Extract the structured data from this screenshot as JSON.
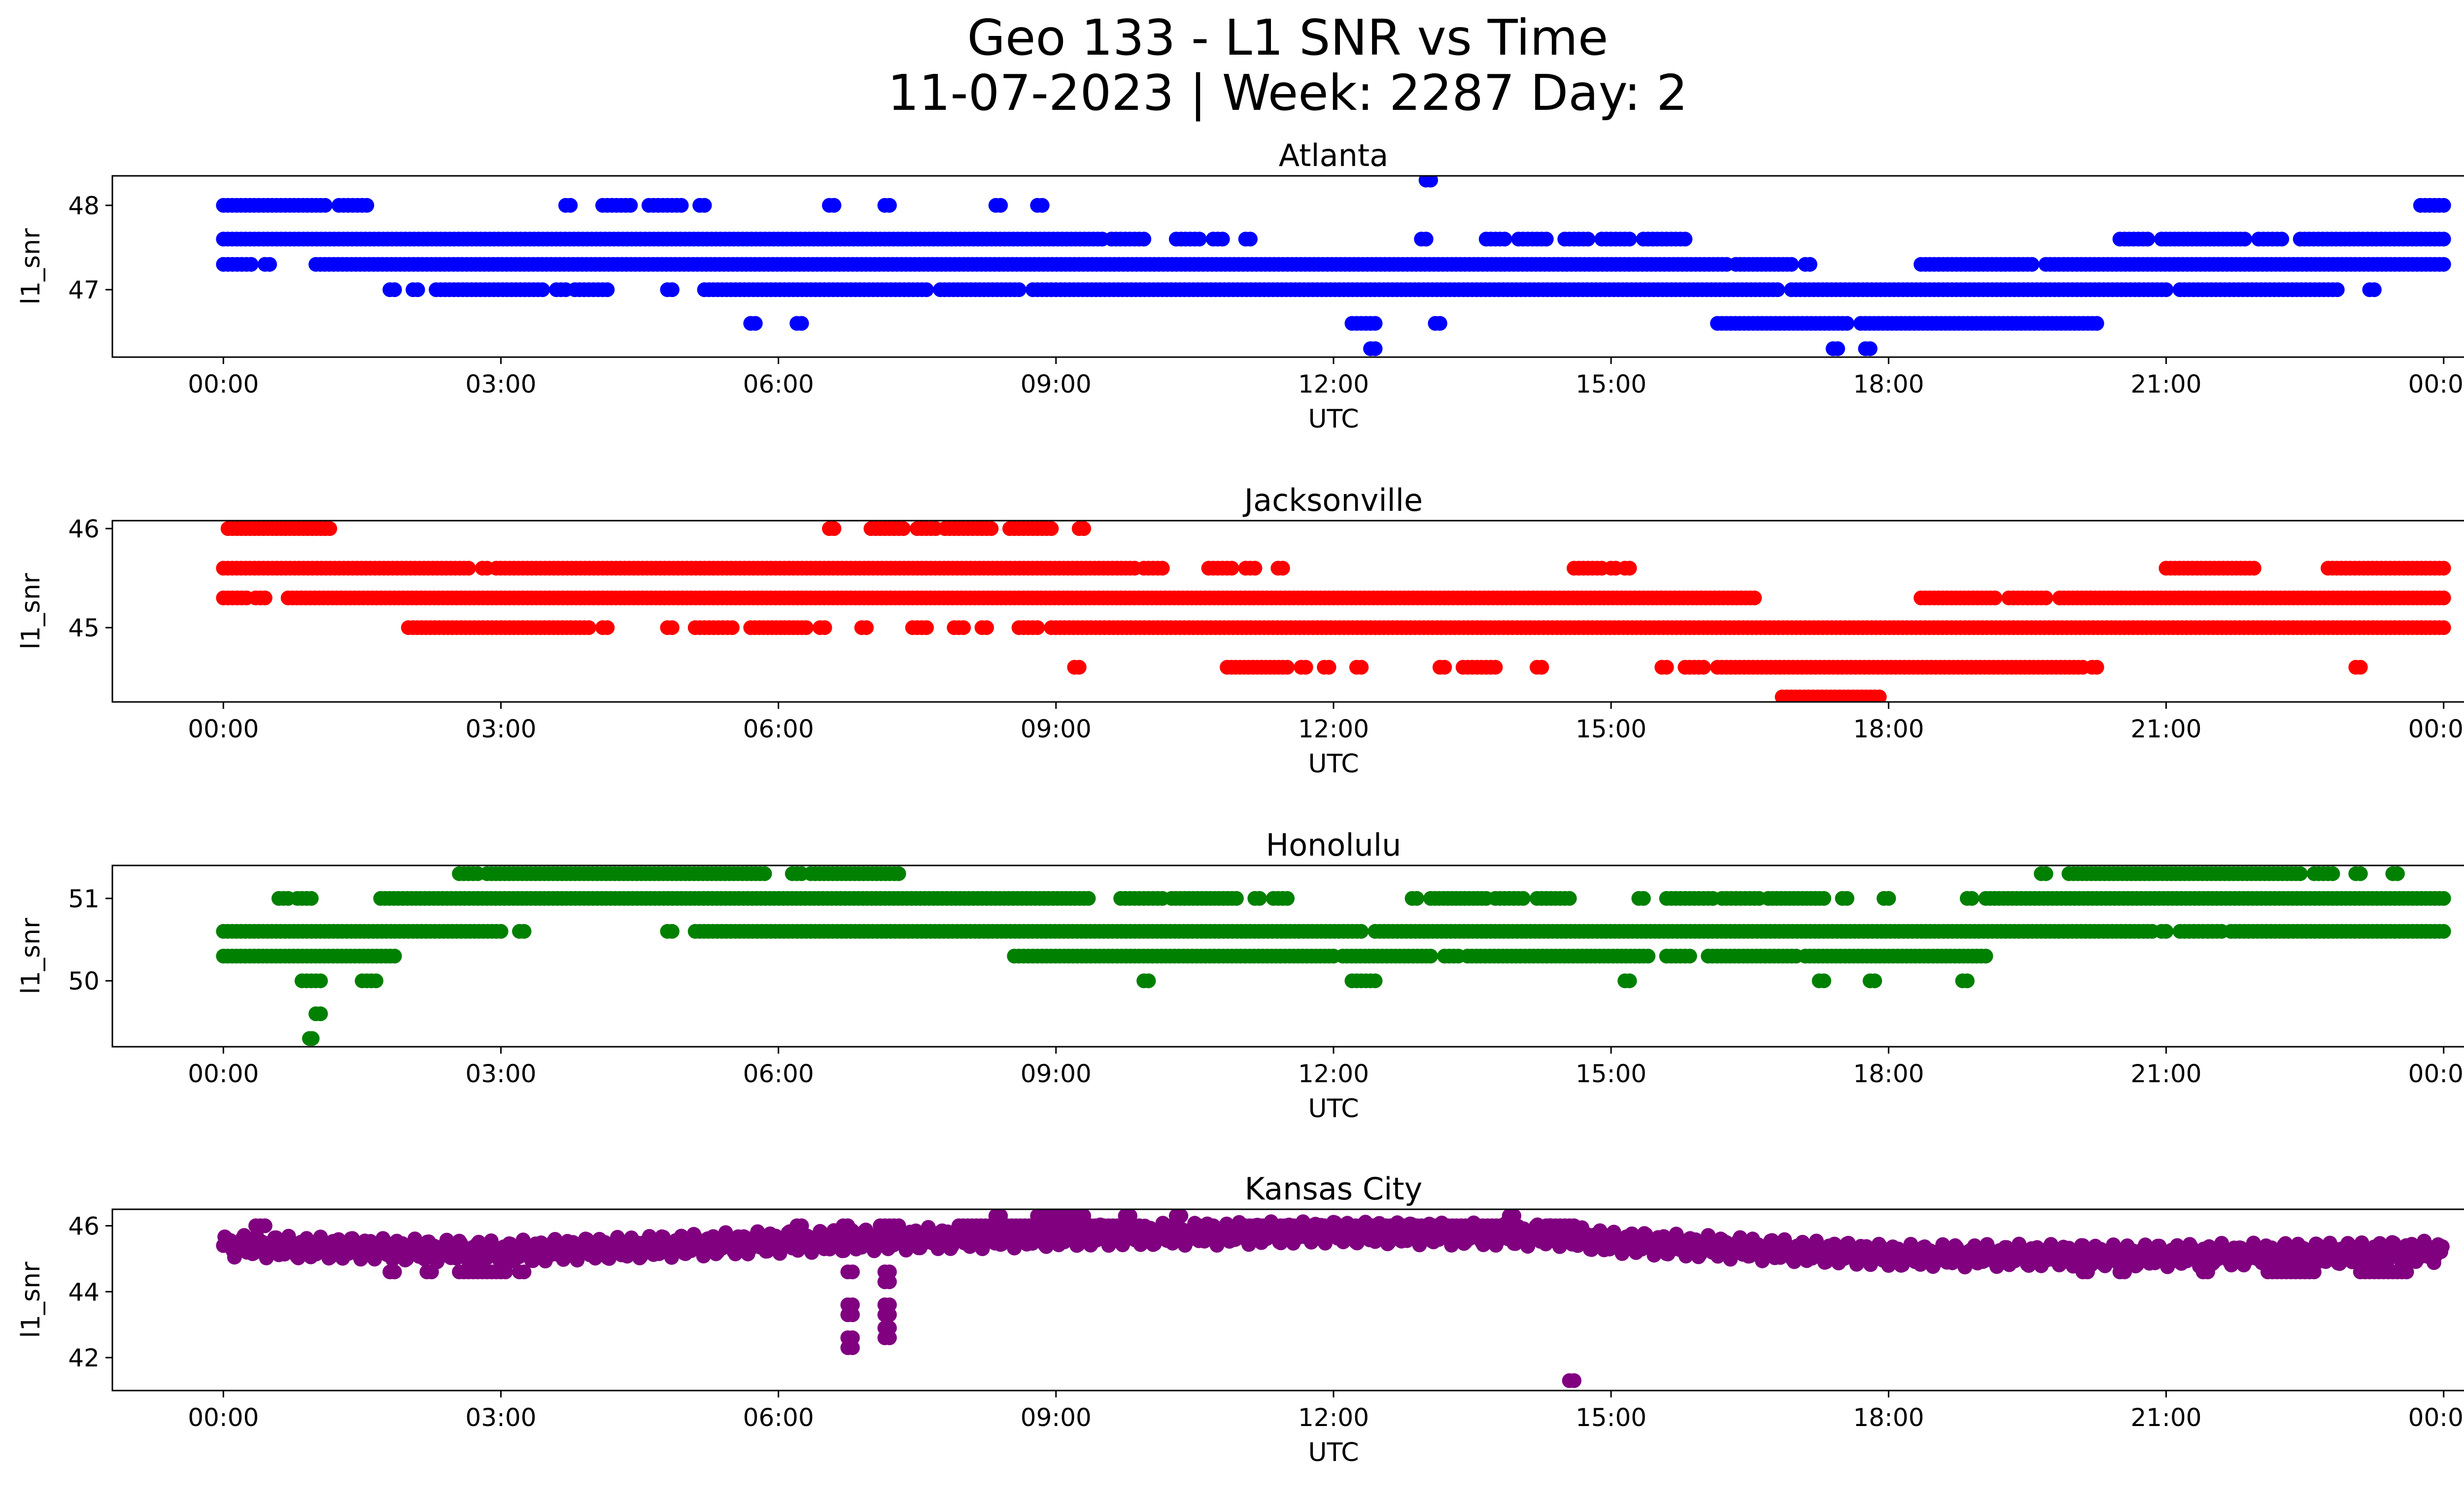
{
  "figure": {
    "title_line1": "Geo 133 - L1 SNR vs Time",
    "title_line2": "11-07-2023 | Week: 2287 Day: 2"
  },
  "chart_data": [
    {
      "type": "scatter",
      "title": "Atlanta",
      "xlabel": "UTC",
      "ylabel": "l1_snr",
      "color": "#0000ff",
      "xlim": [
        "00:00",
        "24:00"
      ],
      "ylim": [
        46.2,
        48.35
      ],
      "xticks": [
        "00:00",
        "03:00",
        "06:00",
        "09:00",
        "12:00",
        "15:00",
        "18:00",
        "21:00",
        "00:00"
      ],
      "yticks": [
        47,
        48
      ],
      "grid": false,
      "series": [
        {
          "y": 48.0,
          "ranges": [
            [
              0.0,
              1.1
            ],
            [
              1.25,
              1.55
            ],
            [
              3.7,
              3.75
            ],
            [
              4.1,
              4.4
            ],
            [
              4.6,
              4.95
            ],
            [
              5.15,
              5.2
            ],
            [
              6.55,
              6.6
            ],
            [
              7.15,
              7.2
            ],
            [
              8.35,
              8.4
            ],
            [
              8.8,
              8.85
            ],
            [
              23.75,
              24.0
            ]
          ]
        },
        {
          "y": 47.6,
          "ranges": [
            [
              0.0,
              9.5
            ],
            [
              9.6,
              9.95
            ],
            [
              10.3,
              10.55
            ],
            [
              10.7,
              10.8
            ],
            [
              11.05,
              11.1
            ],
            [
              12.95,
              13.0
            ],
            [
              13.65,
              13.85
            ],
            [
              14.0,
              14.3
            ],
            [
              14.5,
              14.75
            ],
            [
              14.9,
              15.2
            ],
            [
              15.35,
              15.8
            ],
            [
              20.5,
              20.8
            ],
            [
              20.95,
              21.85
            ],
            [
              22.0,
              22.25
            ],
            [
              22.45,
              24.0
            ]
          ]
        },
        {
          "y": 47.3,
          "ranges": [
            [
              0.0,
              0.3
            ],
            [
              0.45,
              0.5
            ],
            [
              1.0,
              16.25
            ],
            [
              16.35,
              16.95
            ],
            [
              17.1,
              17.15
            ],
            [
              18.35,
              19.55
            ],
            [
              19.7,
              24.0
            ]
          ]
        },
        {
          "y": 47.0,
          "ranges": [
            [
              1.8,
              1.85
            ],
            [
              2.05,
              2.1
            ],
            [
              2.3,
              3.45
            ],
            [
              3.6,
              3.7
            ],
            [
              3.8,
              4.15
            ],
            [
              4.8,
              4.85
            ],
            [
              5.2,
              7.6
            ],
            [
              7.75,
              8.6
            ],
            [
              8.75,
              9.0
            ],
            [
              9.05,
              16.8
            ],
            [
              16.95,
              21.0
            ],
            [
              21.15,
              22.85
            ],
            [
              23.2,
              23.25
            ]
          ]
        },
        {
          "y": 46.6,
          "ranges": [
            [
              5.7,
              5.75
            ],
            [
              6.2,
              6.25
            ],
            [
              12.2,
              12.45
            ],
            [
              13.1,
              13.15
            ],
            [
              16.15,
              17.55
            ],
            [
              17.7,
              20.25
            ]
          ]
        },
        {
          "y": 46.3,
          "ranges": [
            [
              12.4,
              12.45
            ],
            [
              17.4,
              17.45
            ],
            [
              17.75,
              17.8
            ]
          ]
        },
        {
          "y": 48.3,
          "ranges": [
            [
              13.0,
              13.05
            ]
          ]
        }
      ]
    },
    {
      "type": "scatter",
      "title": "Jacksonville",
      "xlabel": "UTC",
      "ylabel": "l1_snr",
      "color": "#ff0000",
      "xlim": [
        "00:00",
        "24:00"
      ],
      "ylim": [
        44.25,
        46.08
      ],
      "xticks": [
        "00:00",
        "03:00",
        "06:00",
        "09:00",
        "12:00",
        "15:00",
        "18:00",
        "21:00",
        "00:00"
      ],
      "yticks": [
        45,
        46
      ],
      "grid": false,
      "series": [
        {
          "y": 46.0,
          "ranges": [
            [
              0.05,
              1.15
            ],
            [
              6.55,
              6.6
            ],
            [
              7.0,
              7.35
            ],
            [
              7.5,
              7.7
            ],
            [
              7.8,
              8.3
            ],
            [
              8.5,
              8.95
            ],
            [
              9.25,
              9.3
            ]
          ]
        },
        {
          "y": 45.6,
          "ranges": [
            [
              0.0,
              2.65
            ],
            [
              2.8,
              2.85
            ],
            [
              2.95,
              9.85
            ],
            [
              9.95,
              10.15
            ],
            [
              10.65,
              10.9
            ],
            [
              11.05,
              11.15
            ],
            [
              11.4,
              11.45
            ],
            [
              14.6,
              14.9
            ],
            [
              15.0,
              15.05
            ],
            [
              15.15,
              15.2
            ],
            [
              21.0,
              21.95
            ],
            [
              22.75,
              24.0
            ]
          ]
        },
        {
          "y": 45.3,
          "ranges": [
            [
              0.0,
              0.25
            ],
            [
              0.35,
              0.45
            ],
            [
              0.7,
              16.55
            ],
            [
              18.35,
              19.15
            ],
            [
              19.3,
              19.7
            ],
            [
              19.85,
              24.0
            ]
          ]
        },
        {
          "y": 45.0,
          "ranges": [
            [
              2.0,
              3.95
            ],
            [
              4.1,
              4.15
            ],
            [
              4.8,
              4.85
            ],
            [
              5.1,
              5.5
            ],
            [
              5.7,
              6.3
            ],
            [
              6.45,
              6.5
            ],
            [
              6.9,
              6.95
            ],
            [
              7.45,
              7.6
            ],
            [
              7.9,
              8.0
            ],
            [
              8.2,
              8.25
            ],
            [
              8.6,
              8.8
            ],
            [
              8.95,
              24.0
            ]
          ]
        },
        {
          "y": 44.6,
          "ranges": [
            [
              9.2,
              9.25
            ],
            [
              10.85,
              11.5
            ],
            [
              11.65,
              11.7
            ],
            [
              11.9,
              11.95
            ],
            [
              12.25,
              12.3
            ],
            [
              13.15,
              13.2
            ],
            [
              13.4,
              13.75
            ],
            [
              14.2,
              14.25
            ],
            [
              15.55,
              15.6
            ],
            [
              15.8,
              16.0
            ],
            [
              16.15,
              20.1
            ],
            [
              20.2,
              20.25
            ],
            [
              23.05,
              23.1
            ]
          ]
        },
        {
          "y": 44.3,
          "ranges": [
            [
              16.85,
              17.9
            ]
          ]
        }
      ]
    },
    {
      "type": "scatter",
      "title": "Honolulu",
      "xlabel": "UTC",
      "ylabel": "l1_snr",
      "color": "#008000",
      "xlim": [
        "00:00",
        "24:00"
      ],
      "ylim": [
        49.2,
        51.4
      ],
      "xticks": [
        "00:00",
        "03:00",
        "06:00",
        "09:00",
        "12:00",
        "15:00",
        "18:00",
        "21:00",
        "00:00"
      ],
      "yticks": [
        50,
        51
      ],
      "grid": false,
      "series": [
        {
          "y": 51.3,
          "ranges": [
            [
              2.55,
              2.75
            ],
            [
              2.85,
              5.85
            ],
            [
              6.15,
              6.25
            ],
            [
              6.35,
              7.3
            ],
            [
              19.65,
              19.7
            ],
            [
              19.95,
              22.45
            ],
            [
              22.6,
              22.8
            ],
            [
              23.05,
              23.1
            ],
            [
              23.45,
              23.5
            ]
          ]
        },
        {
          "y": 51.0,
          "ranges": [
            [
              0.6,
              0.7
            ],
            [
              0.8,
              0.95
            ],
            [
              1.7,
              9.35
            ],
            [
              9.7,
              10.15
            ],
            [
              10.25,
              10.95
            ],
            [
              11.15,
              11.2
            ],
            [
              11.35,
              11.5
            ],
            [
              12.85,
              12.9
            ],
            [
              13.05,
              13.65
            ],
            [
              13.75,
              14.05
            ],
            [
              14.2,
              14.55
            ],
            [
              15.3,
              15.35
            ],
            [
              15.6,
              16.1
            ],
            [
              16.2,
              16.6
            ],
            [
              16.7,
              17.3
            ],
            [
              17.5,
              17.55
            ],
            [
              17.95,
              18.0
            ],
            [
              18.85,
              18.9
            ],
            [
              19.05,
              24.0
            ]
          ]
        },
        {
          "y": 50.6,
          "ranges": [
            [
              0.0,
              3.0
            ],
            [
              3.2,
              3.25
            ],
            [
              4.8,
              4.85
            ],
            [
              5.1,
              12.3
            ],
            [
              12.45,
              20.85
            ],
            [
              20.95,
              21.0
            ],
            [
              21.15,
              21.6
            ],
            [
              21.7,
              24.0
            ]
          ]
        },
        {
          "y": 50.3,
          "ranges": [
            [
              0.0,
              1.85
            ],
            [
              8.55,
              8.8
            ],
            [
              8.85,
              12.0
            ],
            [
              12.1,
              13.05
            ],
            [
              13.2,
              13.35
            ],
            [
              13.45,
              15.4
            ],
            [
              15.6,
              15.85
            ],
            [
              16.05,
              17.0
            ],
            [
              17.1,
              19.05
            ]
          ]
        },
        {
          "y": 50.0,
          "ranges": [
            [
              0.85,
              1.05
            ],
            [
              1.5,
              1.65
            ],
            [
              9.95,
              10.0
            ],
            [
              12.2,
              12.45
            ],
            [
              15.15,
              15.2
            ],
            [
              17.25,
              17.3
            ],
            [
              17.8,
              17.85
            ],
            [
              18.8,
              18.85
            ]
          ]
        },
        {
          "y": 49.6,
          "ranges": [
            [
              1.0,
              1.05
            ]
          ]
        },
        {
          "y": 49.3,
          "ranges": [
            [
              0.93,
              0.96
            ]
          ]
        }
      ]
    },
    {
      "type": "scatter",
      "title": "Kansas City",
      "xlabel": "UTC",
      "ylabel": "l1_snr",
      "color": "#800080",
      "xlim": [
        "00:00",
        "24:00"
      ],
      "ylim": [
        41.0,
        46.5
      ],
      "xticks": [
        "00:00",
        "03:00",
        "06:00",
        "09:00",
        "12:00",
        "15:00",
        "18:00",
        "21:00",
        "00:00"
      ],
      "yticks": [
        42,
        44,
        46
      ],
      "grid": false,
      "band": {
        "center": [
          [
            0.0,
            45.4
          ],
          [
            3.0,
            45.2
          ],
          [
            6.0,
            45.5
          ],
          [
            9.0,
            45.7
          ],
          [
            12.0,
            45.8
          ],
          [
            14.5,
            45.7
          ],
          [
            15.0,
            45.5
          ],
          [
            16.5,
            45.3
          ],
          [
            18.0,
            45.1
          ],
          [
            21.0,
            45.1
          ],
          [
            24.0,
            45.2
          ]
        ],
        "half_width": 0.35
      },
      "series": [
        {
          "y": 46.0,
          "ranges": [
            [
              0.35,
              0.45
            ],
            [
              6.2,
              6.25
            ],
            [
              6.7,
              6.75
            ],
            [
              7.1,
              7.3
            ],
            [
              7.95,
              9.9
            ],
            [
              10.2,
              10.25
            ],
            [
              10.5,
              10.7
            ],
            [
              11.0,
              13.95
            ],
            [
              14.3,
              14.6
            ]
          ]
        },
        {
          "y": 46.3,
          "ranges": [
            [
              8.35,
              8.4
            ],
            [
              8.8,
              9.3
            ],
            [
              9.75,
              9.8
            ],
            [
              10.3,
              10.35
            ],
            [
              13.9,
              13.95
            ]
          ]
        },
        {
          "y": 44.6,
          "ranges": [
            [
              1.8,
              1.85
            ],
            [
              2.2,
              2.25
            ],
            [
              2.55,
              3.05
            ],
            [
              3.2,
              3.25
            ],
            [
              6.75,
              6.8
            ],
            [
              7.15,
              7.2
            ],
            [
              20.1,
              20.15
            ],
            [
              20.5,
              20.55
            ],
            [
              21.4,
              21.45
            ],
            [
              22.1,
              22.6
            ],
            [
              23.1,
              23.6
            ]
          ]
        },
        {
          "y": 44.3,
          "ranges": [
            [
              7.15,
              7.2
            ]
          ]
        },
        {
          "y": 43.6,
          "ranges": [
            [
              6.75,
              6.8
            ],
            [
              7.15,
              7.2
            ]
          ]
        },
        {
          "y": 43.3,
          "ranges": [
            [
              6.75,
              6.8
            ],
            [
              7.15,
              7.2
            ]
          ]
        },
        {
          "y": 42.9,
          "ranges": [
            [
              7.15,
              7.2
            ]
          ]
        },
        {
          "y": 42.6,
          "ranges": [
            [
              6.75,
              6.8
            ],
            [
              7.15,
              7.2
            ]
          ]
        },
        {
          "y": 42.3,
          "ranges": [
            [
              6.75,
              6.8
            ]
          ]
        },
        {
          "y": 41.3,
          "ranges": [
            [
              14.55,
              14.6
            ]
          ]
        }
      ]
    }
  ]
}
